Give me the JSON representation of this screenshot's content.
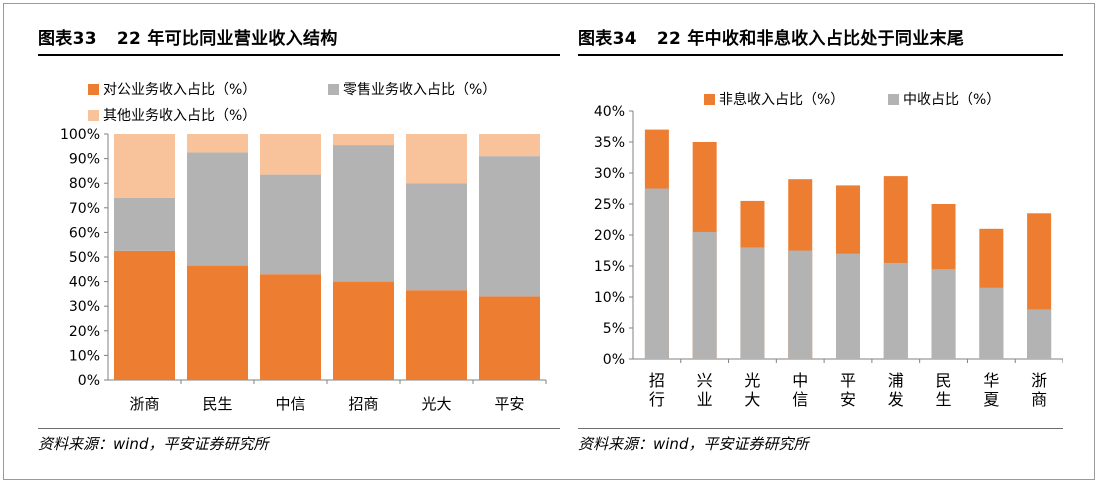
{
  "colors": {
    "orange": "#ED7D31",
    "gray": "#B3B3B3",
    "peach": "#F8C39B",
    "axis": "#808080"
  },
  "source_text": "资料来源：wind，平安证券研究所",
  "chart_data": [
    {
      "figure_label": "图表33",
      "title": "22 年可比同业营业收入结构",
      "type": "bar",
      "stacked": true,
      "categories": [
        "浙商",
        "民生",
        "中信",
        "招商",
        "光大",
        "平安"
      ],
      "series": [
        {
          "name": "对公业务收入占比（%）",
          "color": "#ED7D31",
          "values": [
            52.5,
            46.5,
            43,
            40,
            36.5,
            34
          ]
        },
        {
          "name": "零售业务收入占比（%）",
          "color": "#B3B3B3",
          "values": [
            21.5,
            46,
            40.5,
            55.5,
            43.5,
            57
          ]
        },
        {
          "name": "其他业务收入占比（%）",
          "color": "#F8C39B",
          "values": [
            26,
            7.5,
            16.5,
            4.5,
            20,
            9
          ]
        }
      ],
      "ylim": [
        0,
        100
      ],
      "yticks": [
        "0%",
        "10%",
        "20%",
        "30%",
        "40%",
        "50%",
        "60%",
        "70%",
        "80%",
        "90%",
        "100%"
      ],
      "legend_position": "top",
      "grid": false
    },
    {
      "figure_label": "图表34",
      "title": "22 年中收和非息收入占比处于同业末尾",
      "type": "bar",
      "overlay": true,
      "categories": [
        "招行",
        "兴业",
        "光大",
        "中信",
        "平安",
        "浦发",
        "民生",
        "华夏",
        "浙商"
      ],
      "series": [
        {
          "name": "非息收入占比（%）",
          "color": "#ED7D31",
          "values": [
            37,
            35,
            25.5,
            29,
            28,
            29.5,
            25,
            21,
            23.5
          ]
        },
        {
          "name": "中收占比（%）",
          "color": "#B3B3B3",
          "values": [
            27.5,
            20.5,
            18,
            17.5,
            17,
            15.5,
            14.5,
            11.5,
            8
          ]
        }
      ],
      "ylim": [
        0,
        40
      ],
      "yticks": [
        "0%",
        "5%",
        "10%",
        "15%",
        "20%",
        "25%",
        "30%",
        "35%",
        "40%"
      ],
      "legend_position": "top",
      "grid": false
    }
  ]
}
